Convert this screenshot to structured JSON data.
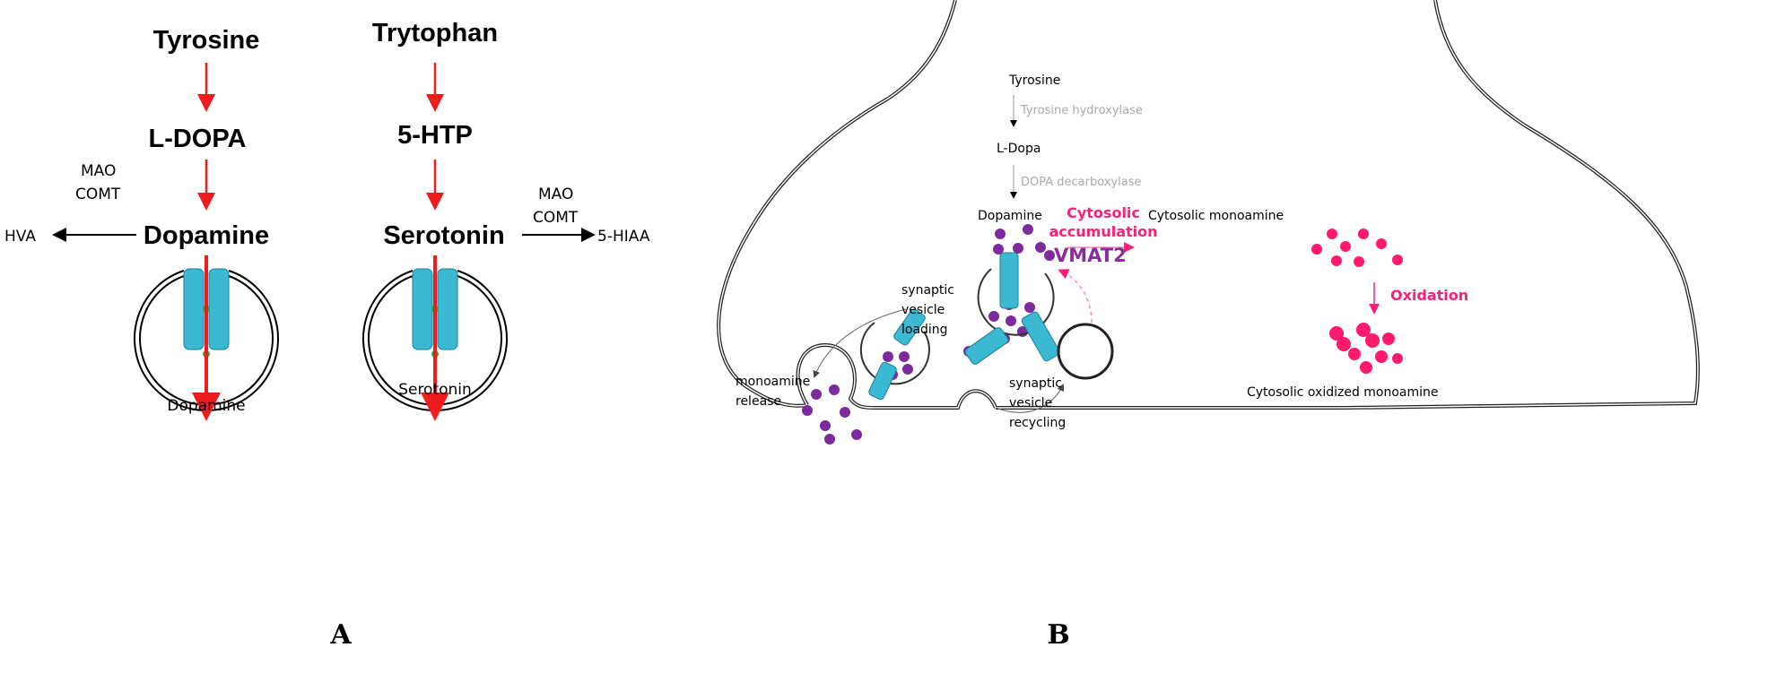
{
  "panel_a": {
    "label": "A",
    "dopamine_pathway": {
      "precursor": "Tyrosine",
      "intermediate": "L-DOPA",
      "product": "Dopamine",
      "enzymes": [
        "MAO",
        "COMT"
      ],
      "metabolite": "HVA",
      "vesicle_label": "Dopamine"
    },
    "serotonin_pathway": {
      "precursor": "Trytophan",
      "intermediate": "5-HTP",
      "product": "Serotonin",
      "enzymes": [
        "MAO",
        "COMT"
      ],
      "metabolite": "5-HIAA",
      "vesicle_label": "Serotonin"
    }
  },
  "panel_b": {
    "label": "B",
    "tyrosine": "Tyrosine",
    "enzyme1": "Tyrosine hydroxylase",
    "ldopa": "L-Dopa",
    "enzyme2": "DOPA decarboxylase",
    "dopamine": "Dopamine",
    "cytosolic_accumulation": [
      "Cytosolic",
      "accumulation"
    ],
    "cytosolic_monoamine": "Cytosolic monoamine",
    "oxidation": "Oxidation",
    "cytosolic_oxidized": "Cytosolic oxidized monoamine",
    "vmat2": "VMAT2",
    "loading": [
      "synaptic",
      "vesicle",
      "loading"
    ],
    "release": [
      "monoamine",
      "release"
    ],
    "recycling": [
      "synaptic",
      "vesicle",
      "recycling"
    ]
  },
  "colors": {
    "red_arrow": "#ee1c1c",
    "transporter": "#3bb8d2",
    "monoamine": "#7b2b9b",
    "oxidized": "#ff1a6e",
    "vmat2_text": "#8a2c9c"
  }
}
